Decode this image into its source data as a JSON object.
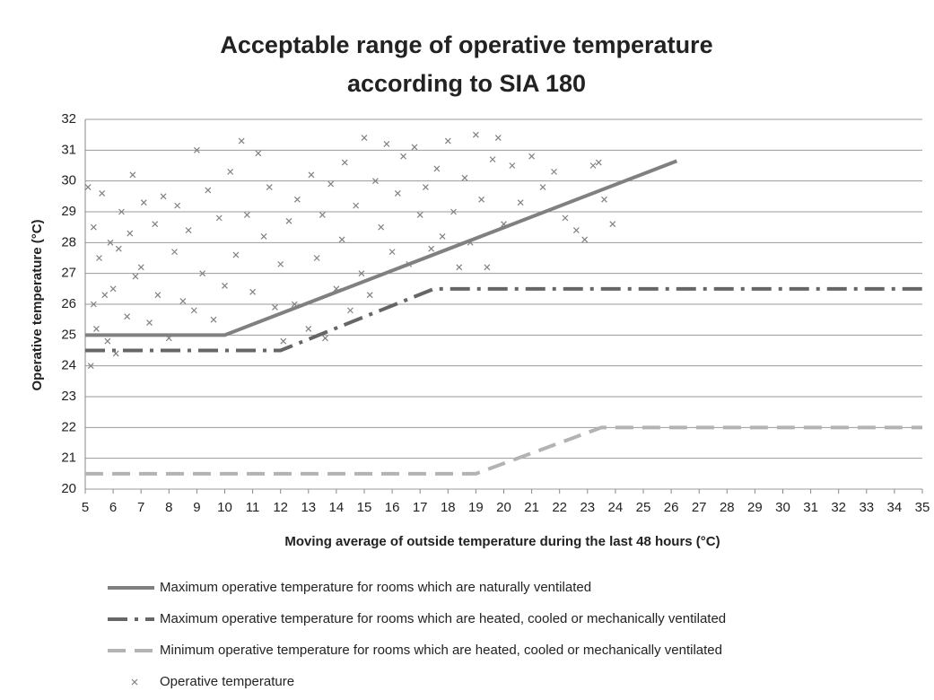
{
  "chart_data": {
    "type": "line",
    "title": [
      "Acceptable range of operative temperature",
      "according to SIA 180"
    ],
    "x_label": "Moving average of outside temperature during the last 48 hours (°C)",
    "y_label": "Operative temperature (°C)",
    "xlim": [
      5,
      35
    ],
    "xticks": [
      5,
      6,
      7,
      8,
      9,
      10,
      11,
      12,
      13,
      14,
      15,
      16,
      17,
      18,
      19,
      20,
      21,
      22,
      23,
      24,
      25,
      26,
      27,
      28,
      29,
      30,
      31,
      32,
      33,
      34,
      35
    ],
    "ylim": [
      20,
      32
    ],
    "yticks": [
      20,
      21,
      22,
      23,
      24,
      25,
      26,
      27,
      28,
      29,
      30,
      31,
      32
    ],
    "grid": true,
    "legend": "bottom",
    "series": [
      {
        "name": "Maximum operative temperature for rooms which are naturally ventilated",
        "type": "line",
        "linestyle": "solid",
        "color": "#808080",
        "x": [
          5,
          10,
          26.2
        ],
        "values": [
          25,
          25,
          30.65
        ]
      },
      {
        "name": "Maximum operative temperature for rooms which are heated, cooled or mechanically ventilated",
        "type": "line",
        "linestyle": "dash-dot",
        "color": "#666666",
        "x": [
          5,
          12,
          17.5,
          35
        ],
        "values": [
          24.5,
          24.5,
          26.5,
          26.5
        ]
      },
      {
        "name": "Minimum operative temperature for rooms which are heated, cooled or mechanically ventilated",
        "type": "line",
        "linestyle": "dashed",
        "color": "#b3b3b3",
        "x": [
          5,
          19,
          23.5,
          35
        ],
        "values": [
          20.5,
          20.5,
          22,
          22
        ]
      },
      {
        "name": "Operative temperature",
        "type": "scatter",
        "color": "#808080",
        "x": [
          5.1,
          5.2,
          5.3,
          5.3,
          5.4,
          5.5,
          5.6,
          5.7,
          5.8,
          5.9,
          6.0,
          6.1,
          6.2,
          6.3,
          6.5,
          6.6,
          6.7,
          6.8,
          7.0,
          7.1,
          7.3,
          7.5,
          7.6,
          7.8,
          8.0,
          8.2,
          8.3,
          8.5,
          8.7,
          8.9,
          9.0,
          9.2,
          9.4,
          9.6,
          9.8,
          10.0,
          10.2,
          10.4,
          10.6,
          10.8,
          11.0,
          11.2,
          11.4,
          11.6,
          11.8,
          12.0,
          12.1,
          12.3,
          12.5,
          12.6,
          13.0,
          13.1,
          13.3,
          13.5,
          13.6,
          13.8,
          14.0,
          14.2,
          14.3,
          14.5,
          14.7,
          14.9,
          15.0,
          15.2,
          15.4,
          15.6,
          15.8,
          16.0,
          16.2,
          16.4,
          16.6,
          16.8,
          17.0,
          17.2,
          17.4,
          17.6,
          17.8,
          18.0,
          18.2,
          18.4,
          18.6,
          18.8,
          19.0,
          19.2,
          19.4,
          19.6,
          19.8,
          20.0,
          20.3,
          20.6,
          21.0,
          21.4,
          21.8,
          22.2,
          22.6,
          22.9,
          23.2,
          23.4,
          23.6,
          23.9
        ],
        "values": [
          29.8,
          24.0,
          28.5,
          26.0,
          25.2,
          27.5,
          29.6,
          26.3,
          24.8,
          28.0,
          26.5,
          24.4,
          27.8,
          29.0,
          25.6,
          28.3,
          30.2,
          26.9,
          27.2,
          29.3,
          25.4,
          28.6,
          26.3,
          29.5,
          24.9,
          27.7,
          29.2,
          26.1,
          28.4,
          25.8,
          31.0,
          27.0,
          29.7,
          25.5,
          28.8,
          26.6,
          30.3,
          27.6,
          31.3,
          28.9,
          26.4,
          30.9,
          28.2,
          29.8,
          25.9,
          27.3,
          24.8,
          28.7,
          26.0,
          29.4,
          25.2,
          30.2,
          27.5,
          28.9,
          24.9,
          29.9,
          26.5,
          28.1,
          30.6,
          25.8,
          29.2,
          27.0,
          31.4,
          26.3,
          30.0,
          28.5,
          31.2,
          27.7,
          29.6,
          30.8,
          27.3,
          31.1,
          28.9,
          29.8,
          27.8,
          30.4,
          28.2,
          31.3,
          29.0,
          27.2,
          30.1,
          28.0,
          31.5,
          29.4,
          27.2,
          30.7,
          31.4,
          28.6,
          30.5,
          29.3,
          30.8,
          29.8,
          30.3,
          28.8,
          28.4,
          28.1,
          30.5,
          30.6,
          29.4,
          28.6
        ]
      }
    ]
  }
}
